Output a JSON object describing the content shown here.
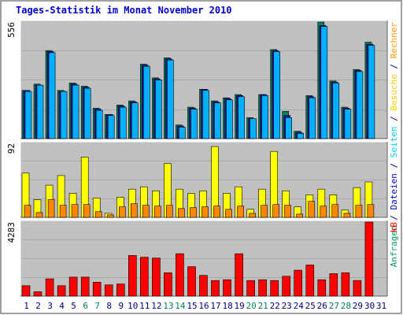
{
  "title": "Tages-Statistik im Monat November 2010",
  "y_max_labels": {
    "top": "556",
    "middle": "92",
    "bottom": "4283"
  },
  "right_legend": {
    "top": [
      {
        "text": "Anfragen",
        "color": "#009966"
      },
      {
        "text": " / ",
        "color": "#000066"
      },
      {
        "text": "Dateien",
        "color": "#0000cc"
      },
      {
        "text": " / ",
        "color": "#000066"
      },
      {
        "text": "Seiten",
        "color": "#00ccff"
      },
      {
        "text": " / ",
        "color": "#000066"
      },
      {
        "text": "Besuche",
        "color": "#ffcc00"
      },
      {
        "text": " / ",
        "color": "#000066"
      },
      {
        "text": "Rechner",
        "color": "#ff9900"
      }
    ],
    "bottom": {
      "text": "kB",
      "color": "#ff0000"
    }
  },
  "colors": {
    "background": "#c0c0c0",
    "frame": "#a0a0a0",
    "anfragen": "#00805a",
    "dateien": "#1a1aa0",
    "seiten": "#00b0ff",
    "besuche": "#ffff00",
    "rechner": "#ff8800",
    "kb": "#ff0000",
    "weekend_label": "#00805a",
    "weekday_label": "#000080"
  },
  "chart_data": [
    {
      "type": "bar",
      "title": "Tages-Statistik im Monat November 2010",
      "ylim": [
        0,
        556
      ],
      "y_max_label": "556",
      "categories": [
        "1",
        "2",
        "3",
        "4",
        "5",
        "6",
        "7",
        "8",
        "9",
        "10",
        "11",
        "12",
        "13",
        "14",
        "15",
        "16",
        "17",
        "18",
        "19",
        "20",
        "21",
        "22",
        "23",
        "24",
        "25",
        "26",
        "27",
        "28",
        "29",
        "30",
        "31"
      ],
      "weekend_days": [
        "6",
        "7",
        "13",
        "14",
        "20",
        "21",
        "27",
        "28"
      ],
      "series": [
        {
          "name": "Anfragen",
          "values": [
            230,
            260,
            420,
            230,
            265,
            250,
            145,
            115,
            160,
            180,
            355,
            290,
            385,
            65,
            150,
            235,
            180,
            195,
            210,
            100,
            210,
            425,
            130,
            35,
            205,
            556,
            275,
            150,
            330,
            460,
            0
          ]
        },
        {
          "name": "Dateien",
          "values": [
            230,
            255,
            415,
            225,
            260,
            245,
            140,
            115,
            155,
            175,
            350,
            285,
            380,
            60,
            145,
            235,
            175,
            190,
            205,
            95,
            210,
            420,
            110,
            30,
            200,
            540,
            270,
            145,
            325,
            450,
            0
          ]
        },
        {
          "name": "Seiten",
          "values": [
            225,
            255,
            410,
            225,
            255,
            240,
            135,
            110,
            150,
            170,
            345,
            280,
            375,
            55,
            140,
            230,
            170,
            185,
            200,
            95,
            205,
            415,
            100,
            25,
            195,
            535,
            265,
            140,
            320,
            445,
            0
          ]
        }
      ]
    },
    {
      "type": "bar",
      "ylim": [
        0,
        92
      ],
      "y_max_label": "92",
      "categories": [
        "1",
        "2",
        "3",
        "4",
        "5",
        "6",
        "7",
        "8",
        "9",
        "10",
        "11",
        "12",
        "13",
        "14",
        "15",
        "16",
        "17",
        "18",
        "19",
        "20",
        "21",
        "22",
        "23",
        "24",
        "25",
        "26",
        "27",
        "28",
        "29",
        "30",
        "31"
      ],
      "series": [
        {
          "name": "Besuche",
          "values": [
            55,
            22,
            40,
            52,
            30,
            75,
            24,
            5,
            25,
            35,
            38,
            33,
            67,
            35,
            30,
            33,
            88,
            30,
            38,
            10,
            35,
            82,
            33,
            13,
            28,
            35,
            28,
            9,
            37,
            44,
            0
          ]
        },
        {
          "name": "Rechner",
          "values": [
            15,
            6,
            22,
            15,
            16,
            16,
            7,
            3,
            13,
            17,
            15,
            14,
            15,
            11,
            12,
            13,
            14,
            10,
            14,
            5,
            15,
            16,
            15,
            4,
            20,
            14,
            16,
            5,
            15,
            16,
            0
          ]
        }
      ]
    },
    {
      "type": "bar",
      "ylim": [
        0,
        4283
      ],
      "y_max_label": "4283",
      "categories": [
        "1",
        "2",
        "3",
        "4",
        "5",
        "6",
        "7",
        "8",
        "9",
        "10",
        "11",
        "12",
        "13",
        "14",
        "15",
        "16",
        "17",
        "18",
        "19",
        "20",
        "21",
        "22",
        "23",
        "24",
        "25",
        "26",
        "27",
        "28",
        "29",
        "30",
        "31"
      ],
      "series": [
        {
          "name": "kB",
          "values": [
            600,
            250,
            1000,
            600,
            1100,
            1100,
            800,
            650,
            700,
            2350,
            2250,
            2200,
            1350,
            2450,
            1700,
            1200,
            900,
            950,
            2450,
            900,
            950,
            900,
            1150,
            1500,
            1800,
            950,
            1300,
            1350,
            900,
            4283,
            0
          ]
        }
      ]
    }
  ]
}
